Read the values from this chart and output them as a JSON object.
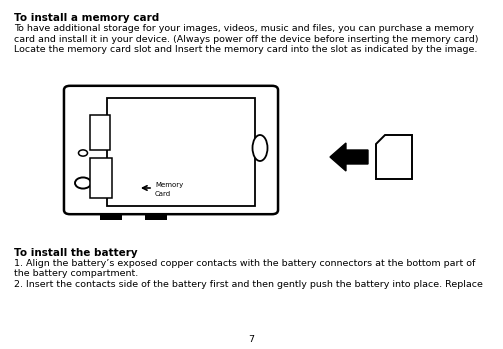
{
  "bg_color": "#ffffff",
  "title1": "To install a memory card",
  "body1_l1": "To have additional storage for your images, videos, music and files, you can purchase a memory",
  "body1_l2": "card and install it in your device. (Always power off the device before inserting the memory card)",
  "body1_l3": "Locate the memory card slot and Insert the memory card into the slot as indicated by the image.",
  "title2": "To install the battery",
  "body2_l1": "1. Align the battery’s exposed copper contacts with the battery connectors at the bottom part of",
  "body2_l2": "the battery compartment.",
  "body2_l3": "2. Insert the contacts side of the battery first and then gently push the battery into place. Replace",
  "page_number": "7",
  "fs_title": 7.5,
  "fs_body": 6.8,
  "fs_small": 5.0
}
